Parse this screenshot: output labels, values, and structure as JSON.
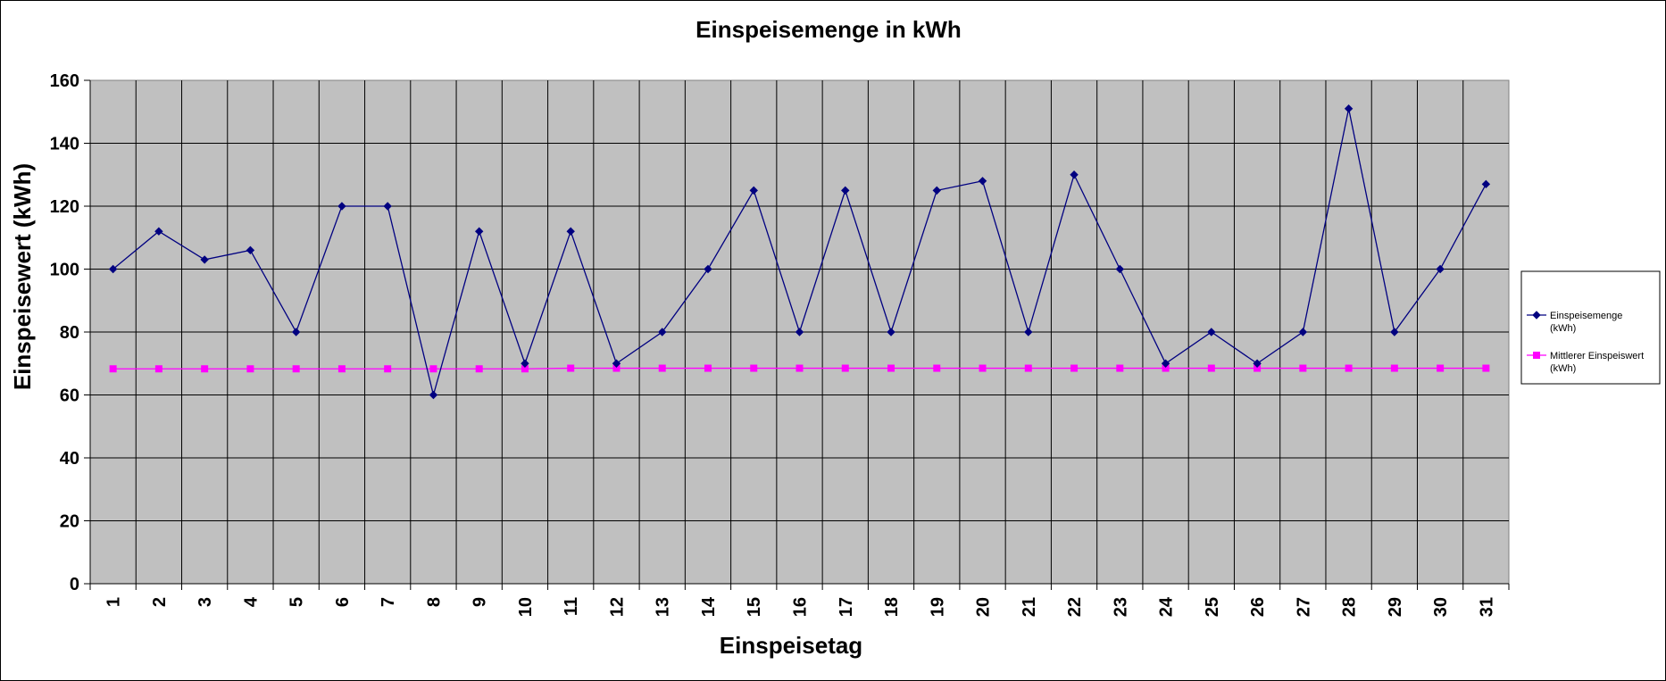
{
  "chart_data": {
    "type": "line",
    "title": "Einspeisemenge in kWh",
    "xlabel": "Einspeisetag",
    "ylabel": "Einspeisewert  (kWh)",
    "categories": [
      "1",
      "2",
      "3",
      "4",
      "5",
      "6",
      "7",
      "8",
      "9",
      "10",
      "11",
      "12",
      "13",
      "14",
      "15",
      "16",
      "17",
      "18",
      "19",
      "20",
      "21",
      "22",
      "23",
      "24",
      "25",
      "26",
      "27",
      "28",
      "29",
      "30",
      "31"
    ],
    "ylim": [
      0,
      160
    ],
    "yticks": [
      "0",
      "20",
      "40",
      "60",
      "80",
      "100",
      "120",
      "140",
      "160"
    ],
    "grid": true,
    "legend_position": "right",
    "series": [
      {
        "name_lines": [
          "Einspeisemenge",
          "(kWh)"
        ],
        "color": "#000080",
        "marker": "diamond",
        "values": [
          100,
          112,
          103,
          106,
          80,
          120,
          120,
          60,
          112,
          70,
          112,
          70,
          80,
          100,
          125,
          80,
          125,
          80,
          125,
          128,
          80,
          130,
          100,
          70,
          80,
          70,
          80,
          151,
          80,
          100,
          127
        ]
      },
      {
        "name_lines": [
          "Mittlerer Einspeiswert",
          "(kWh)"
        ],
        "color": "#ff00ff",
        "marker": "square",
        "values": [
          68.3,
          68.3,
          68.3,
          68.3,
          68.3,
          68.3,
          68.3,
          68.3,
          68.3,
          68.3,
          68.5,
          68.5,
          68.5,
          68.5,
          68.5,
          68.5,
          68.5,
          68.5,
          68.5,
          68.5,
          68.5,
          68.5,
          68.5,
          68.5,
          68.5,
          68.5,
          68.5,
          68.5,
          68.5,
          68.5,
          68.5
        ]
      }
    ]
  },
  "colors": {
    "plot_background": "#c0c0c0",
    "gridline": "#000000"
  }
}
